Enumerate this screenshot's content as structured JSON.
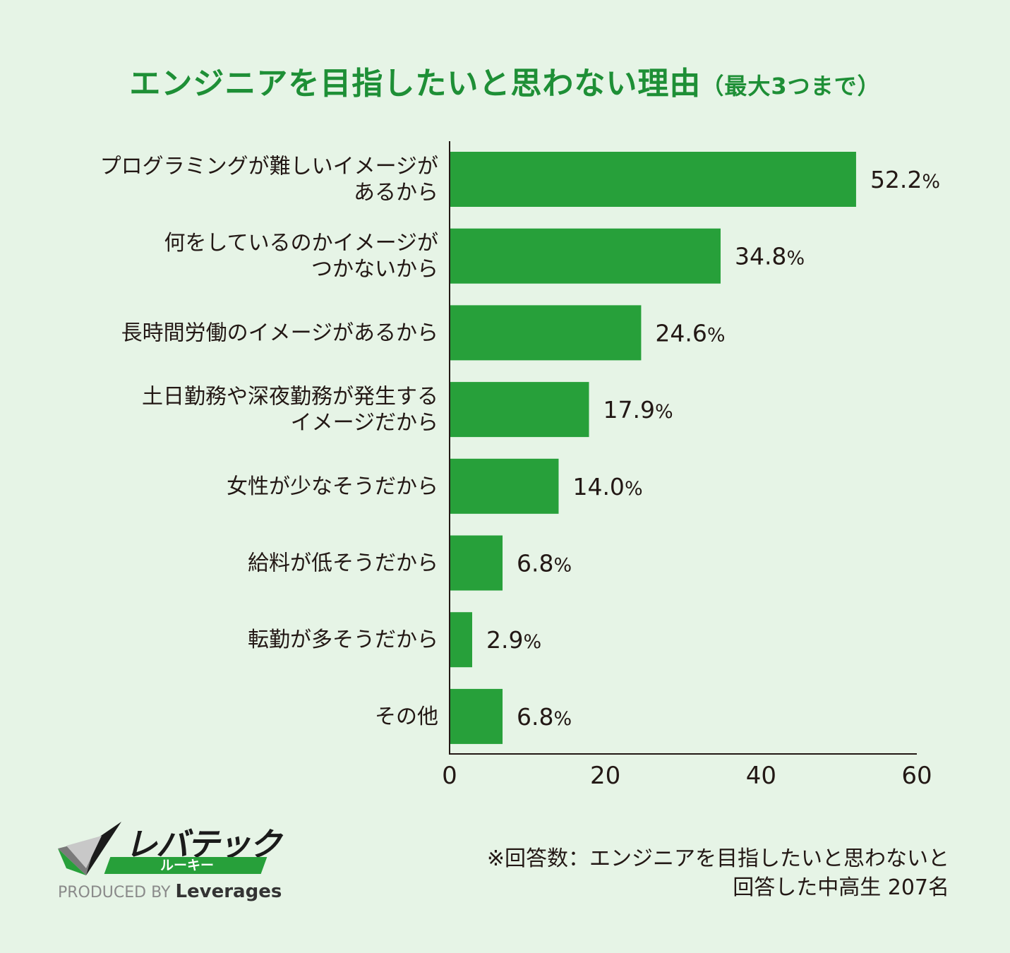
{
  "header": {
    "title": "エンジニアを目指したいと思わない理由",
    "subtitle": "（最大3つまで）"
  },
  "chart_data": {
    "type": "bar",
    "orientation": "horizontal",
    "categories": [
      [
        "プログラミングが難しいイメージが",
        "あるから"
      ],
      [
        "何をしているのかイメージが",
        "つかないから"
      ],
      [
        "長時間労働のイメージがあるから"
      ],
      [
        "土日勤務や深夜勤務が発生する",
        "イメージだから"
      ],
      [
        "女性が少なそうだから"
      ],
      [
        "給料が低そうだから"
      ],
      [
        "転勤が多そうだから"
      ],
      [
        "その他"
      ]
    ],
    "values": [
      52.2,
      34.8,
      24.6,
      17.9,
      14.0,
      6.8,
      2.9,
      6.8
    ],
    "value_labels": [
      "52.2",
      "34.8",
      "24.6",
      "17.9",
      "14.0",
      "6.8",
      "2.9",
      "6.8"
    ],
    "unit": "%",
    "xlim": [
      0,
      60
    ],
    "xticks": [
      "0",
      "20",
      "40",
      "60"
    ],
    "grid": false,
    "bar_color": "#27a03a"
  },
  "logo": {
    "name": "レバテック",
    "sub": "ルーキー",
    "produced_by": "PRODUCED BY",
    "brand": "Leverages"
  },
  "footnote": {
    "line1": "※回答数：エンジニアを目指したいと思わないと",
    "line2": "回答した中高生 207名"
  }
}
